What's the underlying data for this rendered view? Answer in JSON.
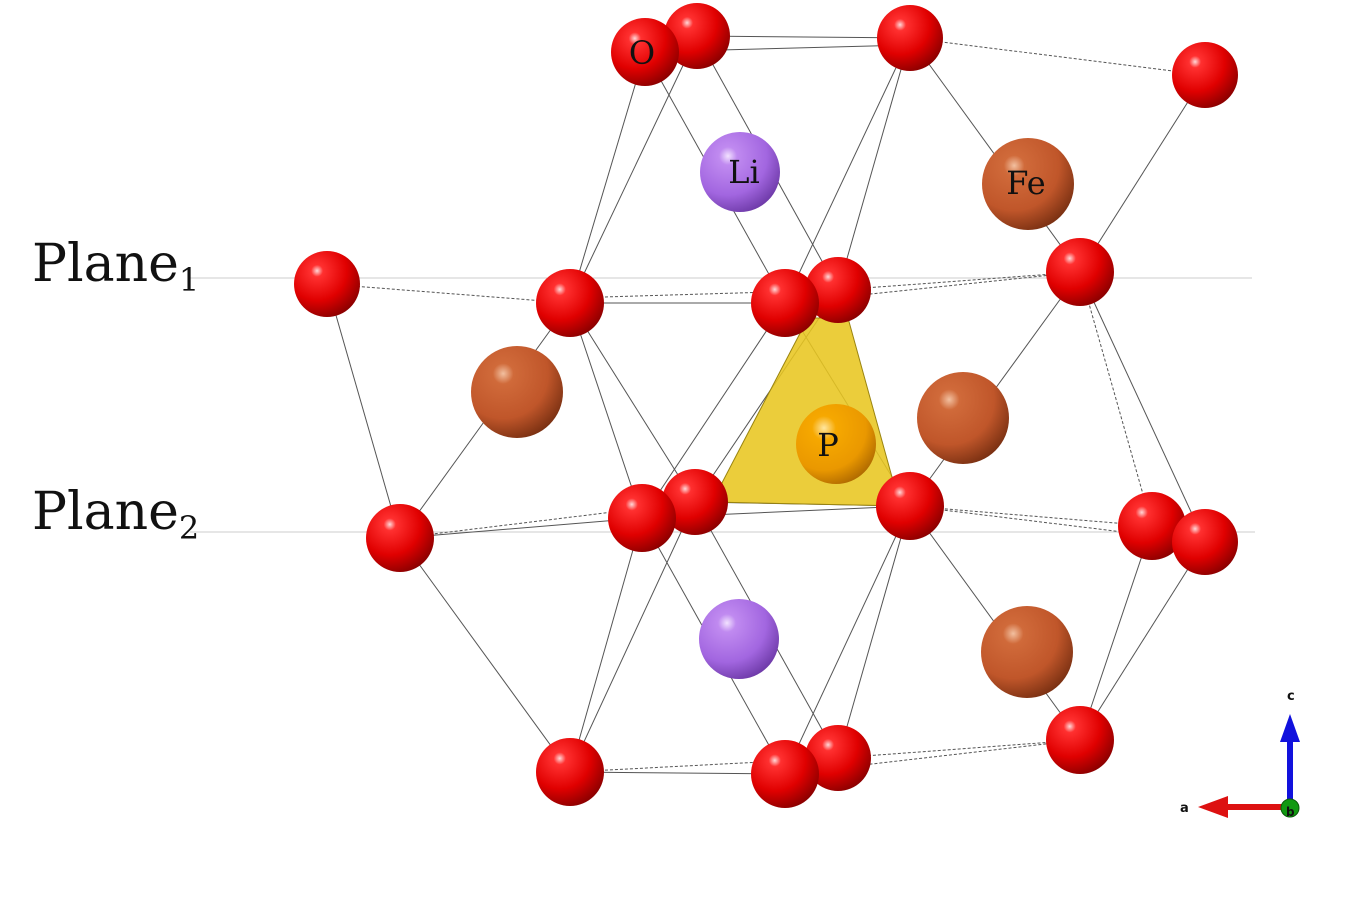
{
  "planes": [
    {
      "name": "Plane",
      "index": "1"
    },
    {
      "name": "Plane",
      "index": "2"
    }
  ],
  "atom_labels": {
    "O": "O",
    "Li": "Li",
    "Fe": "Fe",
    "P": "P"
  },
  "colors": {
    "O": "#e01010",
    "Li": "#a66be0",
    "Fe": "#c2562a",
    "P": "#ea9800",
    "tetrahedron": "#e8c620",
    "axis_a": "#dd1111",
    "axis_b": "#119911",
    "axis_c": "#1111dd"
  },
  "axes": {
    "a": "a",
    "b": "b",
    "c": "c"
  }
}
